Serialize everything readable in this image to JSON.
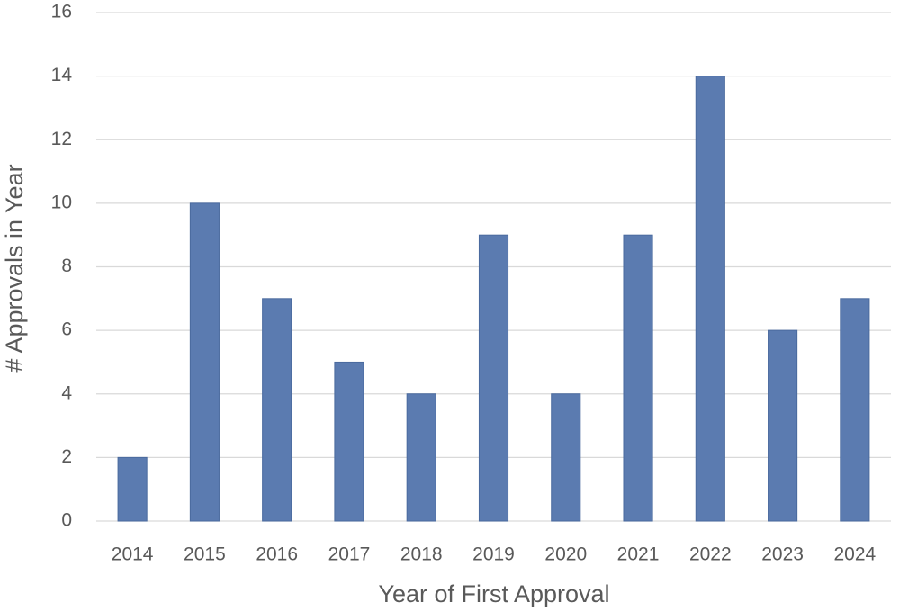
{
  "chart_data": {
    "type": "bar",
    "x_label": "Year of First Approval",
    "y_label": "# Approvals in Year",
    "categories": [
      "2014",
      "2015",
      "2016",
      "2017",
      "2018",
      "2019",
      "2020",
      "2021",
      "2022",
      "2023",
      "2024"
    ],
    "values": [
      2,
      10,
      7,
      5,
      4,
      9,
      4,
      9,
      14,
      6,
      7
    ],
    "color": "#5b7bb0",
    "ylim": [
      0,
      16
    ],
    "yticks": [
      0,
      2,
      4,
      6,
      8,
      10,
      12,
      14,
      16
    ],
    "grid": true
  }
}
